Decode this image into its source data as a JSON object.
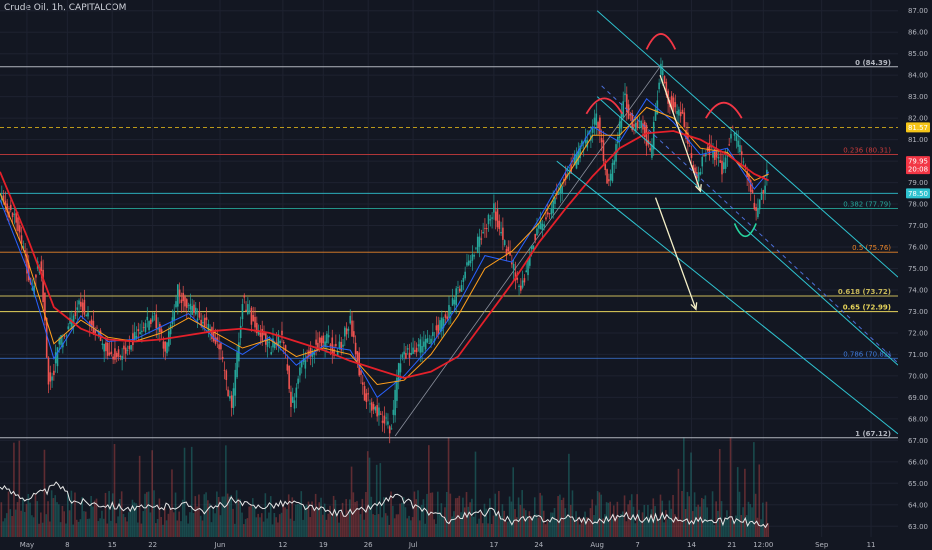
{
  "header": {
    "title": "Crude Oil, 1h, CAPITALCOM"
  },
  "colors": {
    "background": "#131722",
    "grid": "#1e2230",
    "up": "#26a69a",
    "down": "#ef5350",
    "ma_red": "#e4202a",
    "ma_orange": "#ff9f1c",
    "ma_blue": "#2962ff",
    "ma_green": "#26a69a",
    "channel": "#2ec2cf",
    "annotation": "#f5f0c8",
    "head_shoulders": "#f23645",
    "cup": "#26d6a0",
    "price_text": "#b2b5be"
  },
  "chart_data": {
    "type": "candlestick",
    "symbol": "Crude Oil",
    "interval": "1h",
    "source": "CAPITALCOM",
    "y_axis": {
      "ticks": [
        63,
        64,
        65,
        66,
        67,
        68,
        69,
        70,
        71,
        72,
        73,
        74,
        75,
        76,
        77,
        78,
        79,
        80,
        81,
        82,
        83,
        84,
        85,
        86,
        87
      ],
      "range": [
        62.5,
        87.5
      ]
    },
    "x_axis": {
      "range": [
        0,
        100
      ],
      "tick_labels": [
        "May",
        "8",
        "15",
        "22",
        "Jun",
        "12",
        "19",
        "26",
        "Jul",
        "17",
        "24",
        "Aug",
        "7",
        "14",
        "21",
        "12:00",
        "Sep",
        "11"
      ],
      "tick_positions": [
        3,
        7.5,
        12.5,
        17,
        24.5,
        31.5,
        36,
        41,
        46,
        55,
        60,
        66.5,
        71,
        77,
        81.5,
        85,
        91.5,
        97
      ]
    },
    "price_path": [
      [
        0,
        78.3
      ],
      [
        2,
        77.0
      ],
      [
        3.5,
        74.0
      ],
      [
        4.5,
        75.5
      ],
      [
        5.5,
        69.3
      ],
      [
        6.5,
        71.4
      ],
      [
        7.5,
        72.2
      ],
      [
        9,
        73.4
      ],
      [
        10,
        72.6
      ],
      [
        11.5,
        71.4
      ],
      [
        13,
        70.9
      ],
      [
        14.5,
        71.6
      ],
      [
        16,
        72.2
      ],
      [
        17,
        72.9
      ],
      [
        18.5,
        71.1
      ],
      [
        19.8,
        74.0
      ],
      [
        21,
        73.2
      ],
      [
        22.5,
        72.6
      ],
      [
        24.5,
        71.3
      ],
      [
        25.8,
        68.3
      ],
      [
        27,
        73.5
      ],
      [
        28.5,
        72.3
      ],
      [
        30,
        71.3
      ],
      [
        31.5,
        71.9
      ],
      [
        32.5,
        68.5
      ],
      [
        33.5,
        70.5
      ],
      [
        35,
        71.4
      ],
      [
        36.5,
        71.8
      ],
      [
        37.5,
        71.0
      ],
      [
        39,
        72.6
      ],
      [
        40.5,
        69.2
      ],
      [
        42,
        68.3
      ],
      [
        43.5,
        67.6
      ],
      [
        44.5,
        70.6
      ],
      [
        46,
        71.2
      ],
      [
        47.5,
        71.6
      ],
      [
        49,
        72.3
      ],
      [
        50.5,
        73.5
      ],
      [
        52,
        75.0
      ],
      [
        53.5,
        76.6
      ],
      [
        55,
        77.7
      ],
      [
        56.5,
        75.7
      ],
      [
        58,
        74.0
      ],
      [
        59.5,
        76.5
      ],
      [
        61,
        77.4
      ],
      [
        62.5,
        78.9
      ],
      [
        63.5,
        79.6
      ],
      [
        65,
        80.8
      ],
      [
        66.5,
        82.0
      ],
      [
        67.8,
        78.8
      ],
      [
        69.5,
        83.0
      ],
      [
        70.5,
        81.5
      ],
      [
        71.5,
        81.8
      ],
      [
        72.5,
        80.3
      ],
      [
        73.5,
        84.39
      ],
      [
        74.5,
        82.8
      ],
      [
        76,
        82.2
      ],
      [
        77.5,
        79.0
      ],
      [
        78.5,
        80.6
      ],
      [
        79.5,
        80.4
      ],
      [
        80.5,
        79.5
      ],
      [
        81.5,
        81.5
      ],
      [
        82.5,
        80.3
      ],
      [
        83.5,
        78.9
      ],
      [
        84.2,
        77.5
      ],
      [
        85,
        78.8
      ],
      [
        85.6,
        79.95
      ]
    ],
    "moving_averages": [
      {
        "color": "ma_red",
        "points": [
          [
            0,
            79.5
          ],
          [
            3,
            76.5
          ],
          [
            6,
            73.2
          ],
          [
            9,
            72.2
          ],
          [
            12,
            71.7
          ],
          [
            15,
            71.6
          ],
          [
            18,
            71.7
          ],
          [
            21,
            71.9
          ],
          [
            24,
            72.1
          ],
          [
            27,
            72.2
          ],
          [
            30,
            72.0
          ],
          [
            33,
            71.6
          ],
          [
            36,
            71.2
          ],
          [
            39,
            70.7
          ],
          [
            42,
            70.3
          ],
          [
            45,
            69.9
          ],
          [
            48,
            70.2
          ],
          [
            51,
            70.9
          ],
          [
            54,
            72.6
          ],
          [
            57,
            74.3
          ],
          [
            60,
            76.2
          ],
          [
            63,
            77.8
          ],
          [
            66,
            79.3
          ],
          [
            69,
            80.6
          ],
          [
            72,
            81.3
          ],
          [
            75,
            81.4
          ],
          [
            78,
            81.0
          ],
          [
            81,
            80.3
          ],
          [
            84,
            79.4
          ],
          [
            85.6,
            79.1
          ]
        ]
      },
      {
        "color": "ma_orange",
        "points": [
          [
            0,
            78.5
          ],
          [
            3,
            75.5
          ],
          [
            6,
            71.5
          ],
          [
            9,
            72.6
          ],
          [
            12,
            71.8
          ],
          [
            15,
            71.6
          ],
          [
            18,
            72.0
          ],
          [
            21,
            72.7
          ],
          [
            24,
            72.0
          ],
          [
            27,
            71.3
          ],
          [
            30,
            71.7
          ],
          [
            33,
            70.9
          ],
          [
            36,
            71.3
          ],
          [
            39,
            71.0
          ],
          [
            42,
            69.6
          ],
          [
            45,
            69.8
          ],
          [
            48,
            71.0
          ],
          [
            51,
            72.8
          ],
          [
            54,
            75.0
          ],
          [
            57,
            75.8
          ],
          [
            60,
            77.1
          ],
          [
            63,
            79.2
          ],
          [
            66,
            81.2
          ],
          [
            69,
            81.2
          ],
          [
            72,
            82.5
          ],
          [
            75,
            82.0
          ],
          [
            78,
            80.6
          ],
          [
            81,
            80.4
          ],
          [
            84,
            79.1
          ],
          [
            85.6,
            79.4
          ]
        ]
      },
      {
        "color": "ma_blue",
        "points": [
          [
            0,
            78.2
          ],
          [
            3,
            75.0
          ],
          [
            6,
            70.8
          ],
          [
            9,
            72.8
          ],
          [
            12,
            71.6
          ],
          [
            15,
            71.7
          ],
          [
            18,
            72.3
          ],
          [
            21,
            72.9
          ],
          [
            24,
            71.7
          ],
          [
            27,
            71.0
          ],
          [
            30,
            71.8
          ],
          [
            33,
            70.5
          ],
          [
            36,
            71.4
          ],
          [
            39,
            71.2
          ],
          [
            42,
            69.0
          ],
          [
            45,
            70.0
          ],
          [
            48,
            71.4
          ],
          [
            51,
            73.3
          ],
          [
            54,
            75.6
          ],
          [
            57,
            75.3
          ],
          [
            60,
            77.3
          ],
          [
            63,
            79.5
          ],
          [
            66,
            81.6
          ],
          [
            69,
            80.9
          ],
          [
            72,
            82.9
          ],
          [
            75,
            81.8
          ],
          [
            78,
            80.3
          ],
          [
            81,
            80.6
          ],
          [
            84,
            78.7
          ],
          [
            85.6,
            79.5
          ]
        ]
      }
    ],
    "horizontal_levels": [
      {
        "value": 84.39,
        "label": "0 (84.39)",
        "color": "#b2b5be",
        "style": "solid",
        "bold": true
      },
      {
        "value": 81.57,
        "label": "81.57",
        "color": "#f5c518",
        "style": "dashed",
        "bold": false
      },
      {
        "value": 80.31,
        "label": "0.236 (80.31)",
        "color": "#c73b3b",
        "style": "solid",
        "bold": false
      },
      {
        "value": 78.5,
        "label": "78.50",
        "color": "#2ec2cf",
        "style": "solid",
        "bold": false
      },
      {
        "value": 77.79,
        "label": "0.382 (77.79)",
        "color": "#26a69a",
        "style": "solid",
        "bold": false
      },
      {
        "value": 75.76,
        "label": "0.5 (75.76)",
        "color": "#e8842a",
        "style": "solid",
        "bold": false
      },
      {
        "value": 73.72,
        "label": "0.618 (73.72)",
        "color": "#c8b85a",
        "style": "solid",
        "bold": true
      },
      {
        "value": 72.99,
        "label": "0.65 (72.99)",
        "color": "#e6d35a",
        "style": "solid",
        "bold": true
      },
      {
        "value": 70.82,
        "label": "0.786 (70.82)",
        "color": "#3d7adb",
        "style": "solid",
        "bold": false
      },
      {
        "value": 67.12,
        "label": "1 (67.12)",
        "color": "#b2b5be",
        "style": "solid",
        "bold": true
      }
    ],
    "price_labels": [
      {
        "text": "79.95",
        "sub": "20:08",
        "value": 79.95,
        "bg": "#f23645"
      },
      {
        "text": "81.57",
        "value": 81.57,
        "bg": "#f5c518"
      },
      {
        "text": "78.50",
        "value": 78.5,
        "bg": "#2ec2cf"
      }
    ],
    "channel_lines": [
      {
        "x": [
          66.5,
          100
        ],
        "y": [
          87.0,
          74.6
        ]
      },
      {
        "x": [
          66.5,
          100
        ],
        "y": [
          83.0,
          70.5
        ]
      },
      {
        "x": [
          62,
          100
        ],
        "y": [
          80.0,
          67.3
        ]
      }
    ],
    "dashed_midline": {
      "x": [
        67,
        100
      ],
      "y": [
        83.5,
        70.6
      ]
    },
    "trend_support": {
      "x": [
        44,
        73.5
      ],
      "y": [
        67.2,
        84.39
      ]
    },
    "arrows": [
      {
        "x": [
          73.5,
          78
        ],
        "y": [
          84.0,
          78.6
        ]
      },
      {
        "x": [
          73,
          77.5
        ],
        "y": [
          78.3,
          73.1
        ]
      }
    ],
    "head_shoulders": [
      {
        "cx": 67.3,
        "cy": 82.2,
        "w": 4.0,
        "h": 0.9
      },
      {
        "cx": 73.6,
        "cy": 85.2,
        "w": 3.2,
        "h": 0.9
      },
      {
        "cx": 80.6,
        "cy": 82.0,
        "w": 4.0,
        "h": 0.9
      }
    ],
    "cup": {
      "cx": 83.0,
      "cy": 77.1,
      "w": 2.4,
      "h": 0.6
    },
    "volume_oscillator": {
      "points": [
        [
          0,
          64.8
        ],
        [
          3,
          64.3
        ],
        [
          5.5,
          64.7
        ],
        [
          6.5,
          65.0
        ],
        [
          8,
          64.2
        ],
        [
          10,
          64.1
        ],
        [
          12,
          64.0
        ],
        [
          15,
          63.8
        ],
        [
          18,
          63.9
        ],
        [
          21,
          64.0
        ],
        [
          23,
          63.7
        ],
        [
          25.8,
          64.2
        ],
        [
          28,
          63.9
        ],
        [
          30,
          64.0
        ],
        [
          32.5,
          64.1
        ],
        [
          35,
          63.8
        ],
        [
          38,
          63.6
        ],
        [
          40,
          63.7
        ],
        [
          42,
          64.0
        ],
        [
          44,
          64.4
        ],
        [
          46,
          64.0
        ],
        [
          48,
          63.6
        ],
        [
          50,
          63.3
        ],
        [
          52,
          63.5
        ],
        [
          55,
          63.7
        ],
        [
          57,
          63.2
        ],
        [
          60,
          63.4
        ],
        [
          62,
          63.3
        ],
        [
          64,
          63.4
        ],
        [
          66,
          63.2
        ],
        [
          68,
          63.4
        ],
        [
          70,
          63.5
        ],
        [
          72,
          63.3
        ],
        [
          74,
          63.5
        ],
        [
          76,
          63.2
        ],
        [
          78,
          63.3
        ],
        [
          80,
          63.2
        ],
        [
          82,
          63.3
        ],
        [
          84,
          63.1
        ],
        [
          85.6,
          63.1
        ]
      ]
    }
  }
}
